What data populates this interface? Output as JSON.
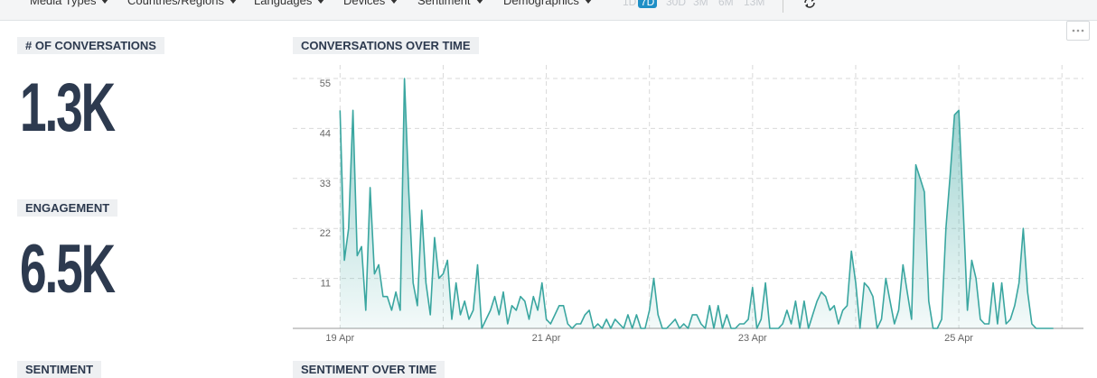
{
  "toolbar": {
    "filters": [
      "Media Types",
      "Countries/Regions",
      "Languages",
      "Devices",
      "Sentiment",
      "Demographics"
    ],
    "ranges": [
      "1D",
      "7D",
      "30D",
      "3M",
      "6M",
      "13M"
    ],
    "active_range_index": 1
  },
  "metrics": [
    {
      "label": "# OF CONVERSATIONS",
      "value": "1.3K"
    },
    {
      "label": "ENGAGEMENT",
      "value": "6.5K"
    }
  ],
  "sentiment_label": "SENTIMENT",
  "sentiment_chart_title": "SENTIMENT OVER TIME",
  "chart_data": {
    "type": "area",
    "title": "CONVERSATIONS OVER TIME",
    "color": "#3aa6a0",
    "grid": true,
    "x": [
      0,
      1,
      2,
      3,
      4,
      5,
      6,
      7,
      8,
      9,
      10,
      11,
      12,
      13,
      14,
      15,
      16,
      17,
      18,
      19,
      20,
      21,
      22,
      23,
      24,
      25,
      26,
      27,
      28,
      29,
      30,
      31,
      32,
      33,
      34,
      35,
      36,
      37,
      38,
      39,
      40,
      41,
      42,
      43,
      44,
      45,
      46,
      47,
      48,
      49,
      50,
      51,
      52,
      53,
      54,
      55,
      56,
      57,
      58,
      59,
      60,
      61,
      62,
      63,
      64,
      65,
      66,
      67,
      68,
      69,
      70,
      71,
      72,
      73,
      74,
      75,
      76,
      77,
      78,
      79,
      80,
      81,
      82,
      83,
      84,
      85,
      86,
      87,
      88,
      89,
      90,
      91,
      92,
      93,
      94,
      95,
      96,
      97,
      98,
      99,
      100,
      101,
      102,
      103,
      104,
      105,
      106,
      107,
      108,
      109,
      110,
      111,
      112,
      113,
      114,
      115,
      116,
      117,
      118,
      119,
      120,
      121,
      122,
      123,
      124,
      125,
      126,
      127,
      128,
      129,
      130,
      131,
      132,
      133,
      134,
      135,
      136,
      137,
      138,
      139,
      140,
      141,
      142,
      143,
      144,
      145,
      146,
      147,
      148,
      149,
      150,
      151,
      152,
      153,
      154,
      155,
      156,
      157,
      158,
      159,
      160,
      161,
      162,
      163,
      164,
      165,
      166
    ],
    "values": [
      48,
      15,
      22,
      48,
      16,
      18,
      4,
      31,
      12,
      14,
      7,
      7,
      4,
      8,
      4,
      55,
      30,
      10,
      5,
      26,
      10,
      3,
      20,
      11,
      12,
      15,
      2,
      10,
      3,
      6,
      2,
      4,
      14,
      0,
      2,
      4,
      7,
      3,
      8,
      1,
      5,
      4,
      7,
      6,
      2,
      7,
      4,
      10,
      2,
      1,
      3,
      5,
      5,
      1,
      0,
      1,
      1,
      3,
      4,
      0,
      1,
      0,
      2,
      0,
      2,
      1,
      0,
      3,
      0,
      3,
      0,
      0,
      4,
      11,
      3,
      0,
      0,
      1,
      2,
      0,
      1,
      0,
      3,
      3,
      1,
      0,
      5,
      0,
      5,
      0,
      3,
      0,
      0,
      1,
      1,
      2,
      9,
      0,
      2,
      10,
      0,
      0,
      0,
      1,
      4,
      1,
      6,
      0,
      6,
      0,
      3,
      6,
      8,
      7,
      4,
      5,
      1,
      4,
      5,
      17,
      10,
      0,
      10,
      9,
      7,
      0,
      2,
      11,
      6,
      1,
      4,
      14,
      8,
      2,
      36,
      33,
      30,
      6,
      0,
      0,
      2,
      22,
      34,
      47,
      48,
      27,
      4,
      15,
      11,
      2,
      1,
      1,
      10,
      1,
      10,
      1,
      2,
      5,
      10,
      22,
      8,
      1,
      0,
      0,
      0,
      0,
      0
    ],
    "xlim": [
      -11,
      173
    ],
    "xticks": [
      {
        "value": 0,
        "label": "19 Apr"
      },
      {
        "value": 48,
        "label": "21 Apr"
      },
      {
        "value": 96,
        "label": "23 Apr"
      },
      {
        "value": 144,
        "label": "25 Apr"
      }
    ],
    "ylim": [
      0,
      55
    ],
    "yticks": [
      11,
      22,
      33,
      44,
      55
    ]
  }
}
